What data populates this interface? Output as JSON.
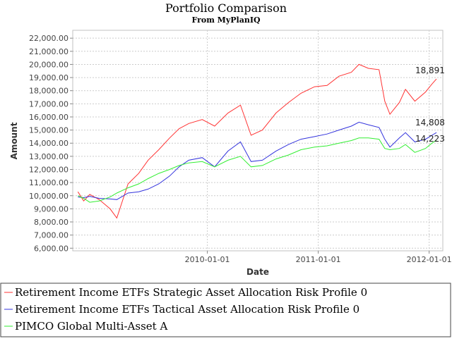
{
  "chart_data": {
    "type": "line",
    "title": "Portfolio Comparison",
    "subtitle": "From MyPlanIQ",
    "xlabel": "Date",
    "ylabel": "Amount",
    "ylim": [
      5800,
      22600
    ],
    "xlim": [
      "2008-10-15",
      "2012-02-15"
    ],
    "y_ticks": [
      "6,000.00",
      "7,000.00",
      "8,000.00",
      "9,000.00",
      "10,000.00",
      "11,000.00",
      "12,000.00",
      "13,000.00",
      "14,000.00",
      "15,000.00",
      "16,000.00",
      "17,000.00",
      "18,000.00",
      "19,000.00",
      "20,000.00",
      "21,000.00",
      "22,000.00"
    ],
    "x_ticks": [
      "2010-01-01",
      "2011-01-01",
      "2012-01-01"
    ],
    "grid": true,
    "legend_position": "bottom",
    "series": [
      {
        "name": "Retirement Income ETFs Strategic Asset Allocation Risk Profile 0",
        "color": "#ff3333",
        "end_label": "18,891",
        "x": [
          "2008-11-01",
          "2008-11-20",
          "2008-12-10",
          "2009-01-10",
          "2009-02-15",
          "2009-03-09",
          "2009-04-15",
          "2009-05-20",
          "2009-06-20",
          "2009-07-25",
          "2009-08-30",
          "2009-09-30",
          "2009-11-01",
          "2009-12-15",
          "2010-01-25",
          "2010-03-10",
          "2010-04-20",
          "2010-05-25",
          "2010-07-01",
          "2010-08-15",
          "2010-09-25",
          "2010-11-05",
          "2010-12-20",
          "2011-01-30",
          "2011-03-10",
          "2011-04-20",
          "2011-05-15",
          "2011-06-15",
          "2011-07-20",
          "2011-08-08",
          "2011-08-25",
          "2011-09-25",
          "2011-10-15",
          "2011-11-15",
          "2011-12-20",
          "2012-01-10",
          "2012-01-25"
        ],
        "values": [
          10300,
          9600,
          10100,
          9700,
          9000,
          8300,
          10900,
          11700,
          12700,
          13500,
          14400,
          15100,
          15500,
          15800,
          15300,
          16300,
          16900,
          14600,
          15000,
          16300,
          17100,
          17800,
          18300,
          18400,
          19100,
          19400,
          20000,
          19700,
          19600,
          17200,
          16200,
          17100,
          18100,
          17200,
          17900,
          18500,
          18891
        ]
      },
      {
        "name": "Retirement Income ETFs Tactical Asset Allocation Risk Profile 0",
        "color": "#3333dd",
        "end_label": "14,808",
        "x": [
          "2008-11-01",
          "2008-11-20",
          "2008-12-10",
          "2009-01-10",
          "2009-02-15",
          "2009-03-09",
          "2009-04-15",
          "2009-05-20",
          "2009-06-20",
          "2009-07-25",
          "2009-08-30",
          "2009-09-30",
          "2009-11-01",
          "2009-12-15",
          "2010-01-25",
          "2010-03-10",
          "2010-04-20",
          "2010-05-25",
          "2010-07-01",
          "2010-08-15",
          "2010-09-25",
          "2010-11-05",
          "2010-12-20",
          "2011-01-30",
          "2011-03-10",
          "2011-04-20",
          "2011-05-15",
          "2011-06-15",
          "2011-07-20",
          "2011-08-08",
          "2011-08-25",
          "2011-09-25",
          "2011-10-15",
          "2011-11-15",
          "2011-12-20",
          "2012-01-10",
          "2012-01-25"
        ],
        "values": [
          9900,
          9850,
          9950,
          9800,
          9750,
          9700,
          10200,
          10300,
          10500,
          10900,
          11500,
          12200,
          12700,
          12900,
          12200,
          13400,
          14100,
          12600,
          12700,
          13400,
          13900,
          14300,
          14500,
          14700,
          15000,
          15300,
          15600,
          15400,
          15200,
          14300,
          13700,
          14400,
          14800,
          14100,
          14300,
          14600,
          14808
        ]
      },
      {
        "name": "PIMCO Global Multi-Asset A",
        "color": "#33ee33",
        "end_label": "14,223",
        "x": [
          "2008-11-01",
          "2008-11-20",
          "2008-12-10",
          "2009-01-10",
          "2009-02-15",
          "2009-03-09",
          "2009-04-15",
          "2009-05-20",
          "2009-06-20",
          "2009-07-25",
          "2009-08-30",
          "2009-09-30",
          "2009-11-01",
          "2009-12-15",
          "2010-01-25",
          "2010-03-10",
          "2010-04-20",
          "2010-05-25",
          "2010-07-01",
          "2010-08-15",
          "2010-09-25",
          "2010-11-05",
          "2010-12-20",
          "2011-01-30",
          "2011-03-10",
          "2011-04-20",
          "2011-05-15",
          "2011-06-15",
          "2011-07-20",
          "2011-08-08",
          "2011-08-25",
          "2011-09-25",
          "2011-10-15",
          "2011-11-15",
          "2011-12-20",
          "2012-01-10",
          "2012-01-25"
        ],
        "values": [
          10000,
          9800,
          9500,
          9600,
          9900,
          10200,
          10600,
          10900,
          11300,
          11700,
          12000,
          12300,
          12500,
          12600,
          12200,
          12700,
          13000,
          12200,
          12300,
          12800,
          13100,
          13500,
          13700,
          13800,
          14000,
          14200,
          14400,
          14400,
          14300,
          13600,
          13500,
          13600,
          13900,
          13300,
          13600,
          14000,
          14223
        ]
      }
    ]
  }
}
